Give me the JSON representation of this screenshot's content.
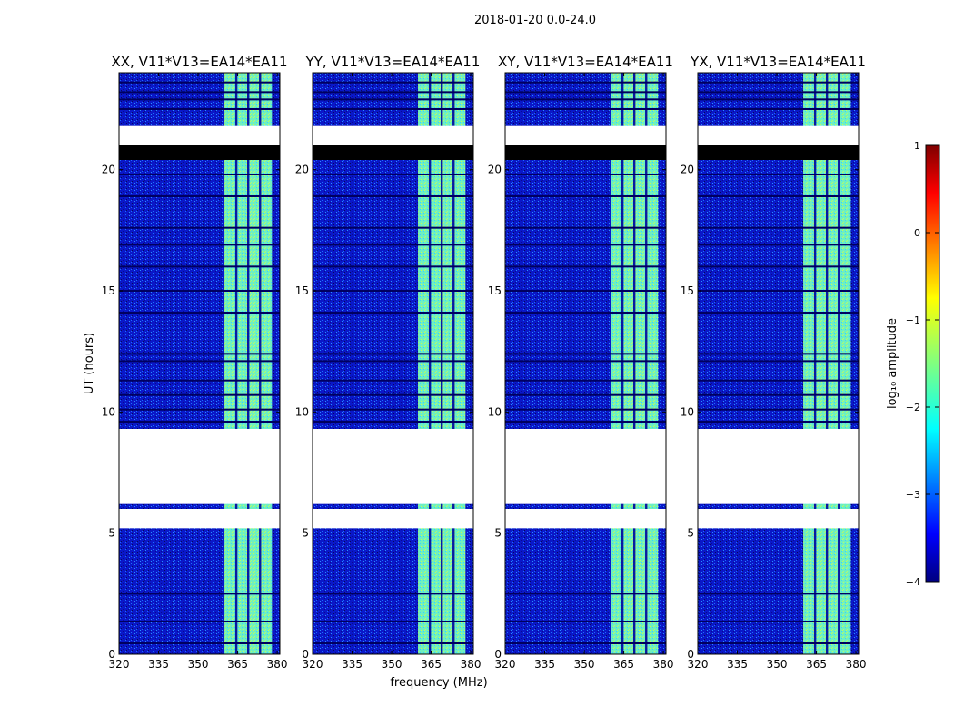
{
  "figure": {
    "suptitle": "2018-01-20 0.0-24.0"
  },
  "chart_data": {
    "type": "heatmap",
    "title": "2018-01-20 0.0-24.0",
    "xlabel": "frequency (MHz)",
    "ylabel": "UT (hours)",
    "xlim": [
      320,
      381
    ],
    "ylim": [
      0,
      24
    ],
    "xticks": [
      320,
      335,
      350,
      365,
      380
    ],
    "yticks": [
      0,
      5,
      10,
      15,
      20
    ],
    "panels": [
      {
        "title": "XX, V11*V13=EA14*EA11"
      },
      {
        "title": "YY, V11*V13=EA14*EA11"
      },
      {
        "title": "XY, V11*V13=EA14*EA11"
      },
      {
        "title": "YX, V11*V13=EA14*EA11"
      }
    ],
    "bright_band_mhz": [
      360,
      378
    ],
    "band_channel_gaps_mhz": [
      364.5,
      369,
      373.5
    ],
    "flagged_time_ranges_hours": [
      [
        5.2,
        6.0
      ],
      [
        6.2,
        9.3
      ],
      [
        21.0,
        21.8
      ]
    ],
    "saturated_time_ranges_hours": [
      [
        20.4,
        21.0
      ]
    ],
    "dark_rows_hours": [
      0.45,
      1.35,
      2.5,
      9.6,
      10.1,
      10.7,
      11.3,
      12.1,
      12.4,
      14.1,
      15.0,
      16.0,
      16.9,
      17.6,
      18.9,
      19.8,
      22.5,
      22.9,
      23.2,
      23.6
    ],
    "colorbar": {
      "label": "log₁₀ amplitude",
      "min": -4,
      "max": 1,
      "ticks": [
        -4,
        -3,
        -2,
        -1,
        0,
        1
      ],
      "colormap": "jet"
    }
  }
}
